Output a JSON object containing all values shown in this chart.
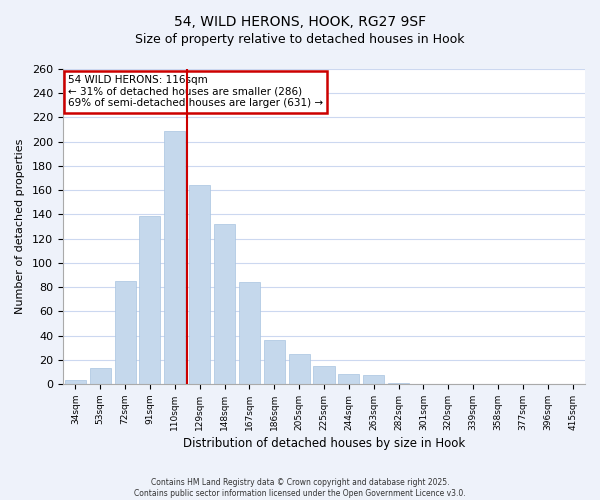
{
  "title": "54, WILD HERONS, HOOK, RG27 9SF",
  "subtitle": "Size of property relative to detached houses in Hook",
  "xlabel": "Distribution of detached houses by size in Hook",
  "ylabel": "Number of detached properties",
  "categories": [
    "34sqm",
    "53sqm",
    "72sqm",
    "91sqm",
    "110sqm",
    "129sqm",
    "148sqm",
    "167sqm",
    "186sqm",
    "205sqm",
    "225sqm",
    "244sqm",
    "263sqm",
    "282sqm",
    "301sqm",
    "320sqm",
    "339sqm",
    "358sqm",
    "377sqm",
    "396sqm",
    "415sqm"
  ],
  "values": [
    3,
    13,
    85,
    139,
    209,
    164,
    132,
    84,
    36,
    25,
    15,
    8,
    7,
    1,
    0,
    0,
    0,
    0,
    0,
    0,
    0
  ],
  "bar_color": "#c5d8ec",
  "bar_edge_color": "#a8c4e0",
  "annotation_title": "54 WILD HERONS: 116sqm",
  "annotation_line1": "← 31% of detached houses are smaller (286)",
  "annotation_line2": "69% of semi-detached houses are larger (631) →",
  "annotation_box_color": "#cc0000",
  "redline_x": 4.5,
  "ylim": [
    0,
    260
  ],
  "yticks": [
    0,
    20,
    40,
    60,
    80,
    100,
    120,
    140,
    160,
    180,
    200,
    220,
    240,
    260
  ],
  "footer_line1": "Contains HM Land Registry data © Crown copyright and database right 2025.",
  "footer_line2": "Contains public sector information licensed under the Open Government Licence v3.0.",
  "background_color": "#eef2fa",
  "plot_background": "#ffffff",
  "grid_color": "#ccd8f0"
}
